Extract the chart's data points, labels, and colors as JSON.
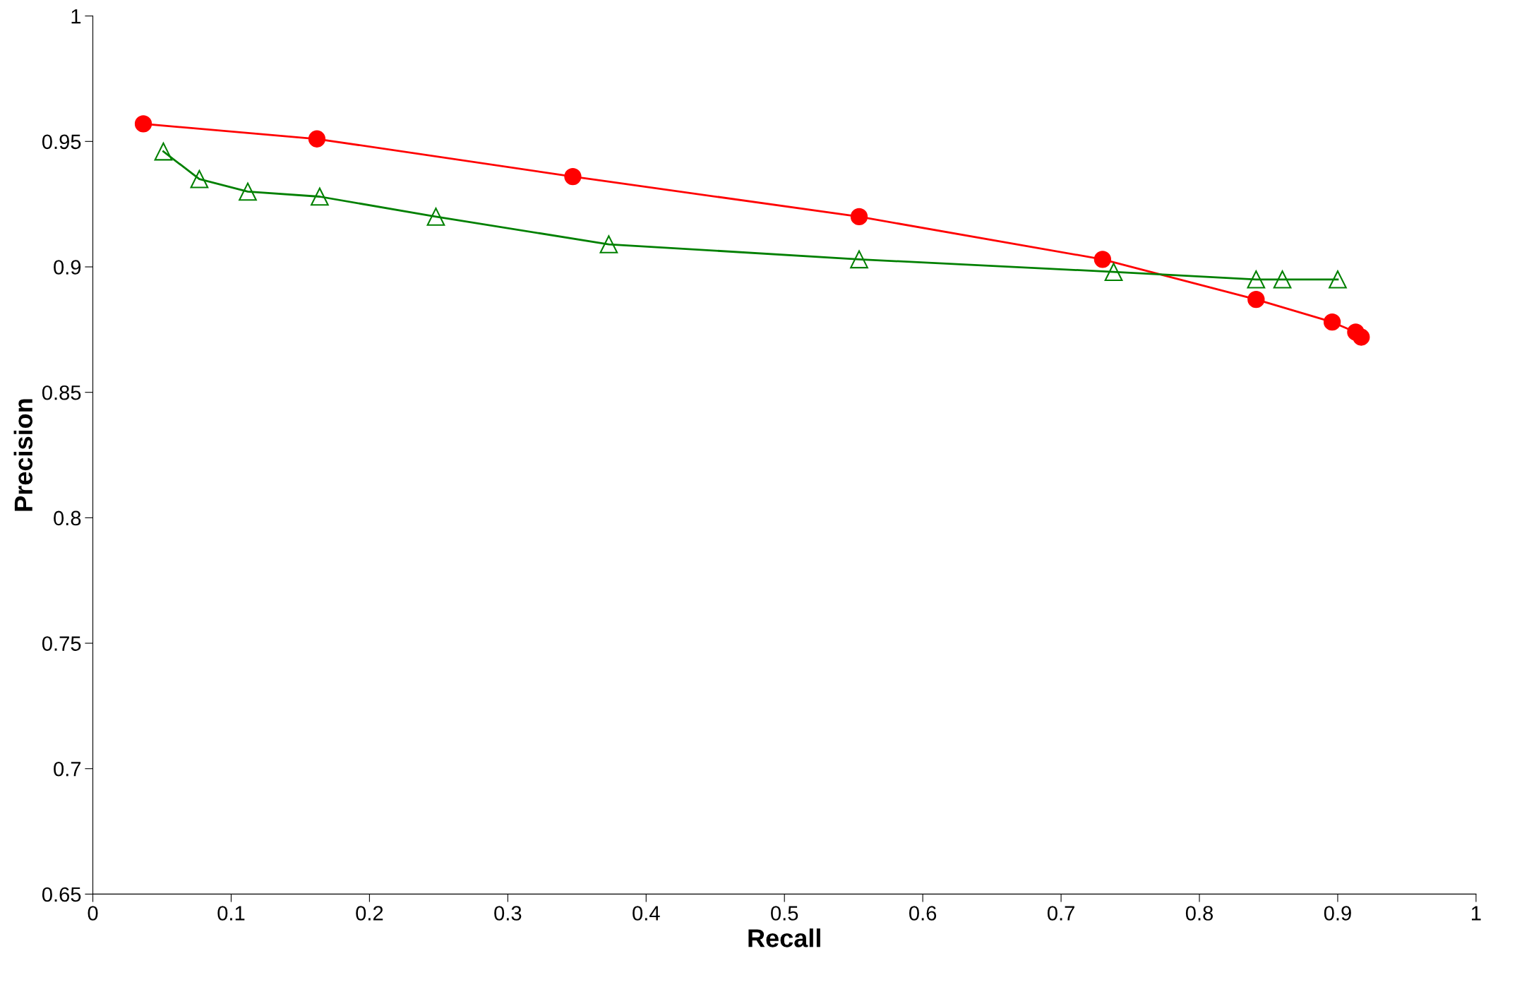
{
  "chart_data": {
    "type": "line",
    "xlabel": "Recall",
    "ylabel": "Precision",
    "xlim": [
      0,
      1
    ],
    "ylim": [
      0.65,
      1
    ],
    "xticks": [
      0,
      0.1,
      0.2,
      0.3,
      0.4,
      0.5,
      0.6,
      0.7,
      0.8,
      0.9,
      1
    ],
    "yticks": [
      0.65,
      0.7,
      0.75,
      0.8,
      0.85,
      0.9,
      0.95,
      1
    ],
    "grid": false,
    "series": [
      {
        "color": "#ff0000",
        "marker": "circle",
        "x": [
          0.0365,
          0.162,
          0.347,
          0.554,
          0.73,
          0.841,
          0.896,
          0.913,
          0.917
        ],
        "values": [
          0.957,
          0.951,
          0.936,
          0.92,
          0.903,
          0.887,
          0.878,
          0.874,
          0.872
        ]
      },
      {
        "color": "#008000",
        "marker": "triangle",
        "x": [
          0.051,
          0.077,
          0.112,
          0.164,
          0.248,
          0.373,
          0.554,
          0.738,
          0.841,
          0.86,
          0.9
        ],
        "values": [
          0.946,
          0.935,
          0.93,
          0.928,
          0.92,
          0.909,
          0.903,
          0.898,
          0.895,
          0.895,
          0.895
        ]
      }
    ]
  }
}
